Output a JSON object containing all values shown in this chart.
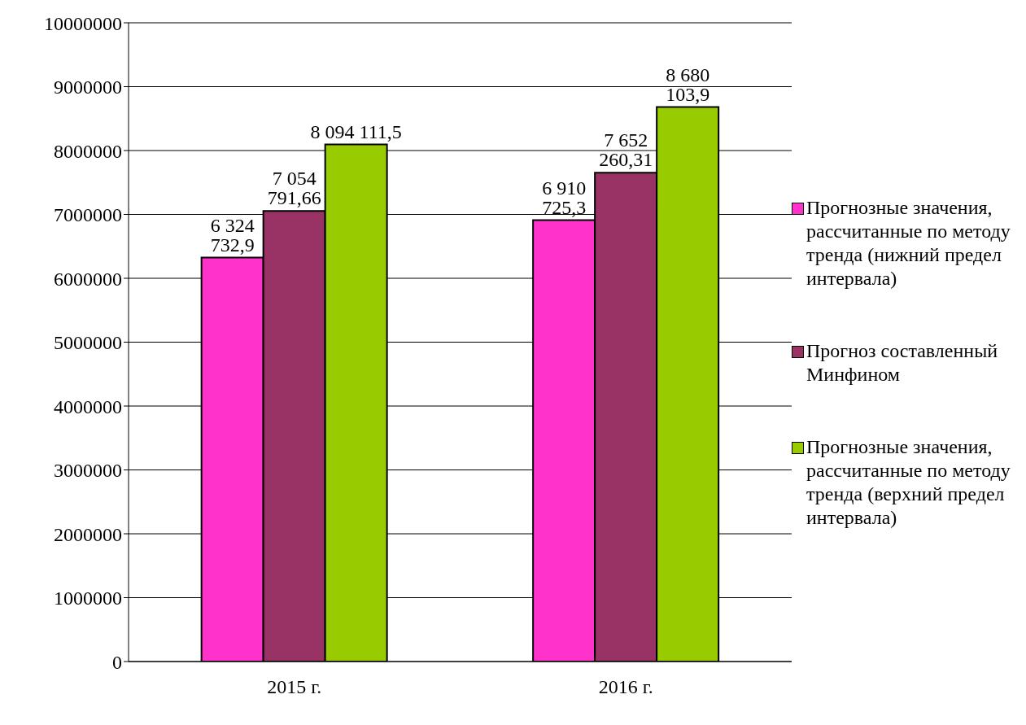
{
  "chart_data": {
    "type": "bar",
    "categories": [
      "2015 г.",
      "2016 г."
    ],
    "series": [
      {
        "name": "Прогнозные значения, рассчитанные по методу тренда (нижний предел интервала)",
        "color": "#ff33cc",
        "values": [
          6324732.9,
          6910725.3
        ],
        "value_labels": [
          "6 324 732,9",
          "6 910 725,3"
        ]
      },
      {
        "name": "Прогноз составленный Минфином",
        "color": "#993366",
        "values": [
          7054791.66,
          7652260.31
        ],
        "value_labels": [
          "7 054 791,66",
          "7 652 260,31"
        ]
      },
      {
        "name": "Прогнозные значения, рассчитанные по методу тренда (верхний предел интервала)",
        "color": "#99cc00",
        "values": [
          8094111.5,
          8680103.9
        ],
        "value_labels": [
          "8 094 111,5",
          "8 680 103,9"
        ]
      }
    ],
    "ylim": [
      0,
      10000000
    ],
    "yticks": [
      0,
      1000000,
      2000000,
      3000000,
      4000000,
      5000000,
      6000000,
      7000000,
      8000000,
      9000000,
      10000000
    ],
    "grid": "y",
    "legend": "right"
  }
}
